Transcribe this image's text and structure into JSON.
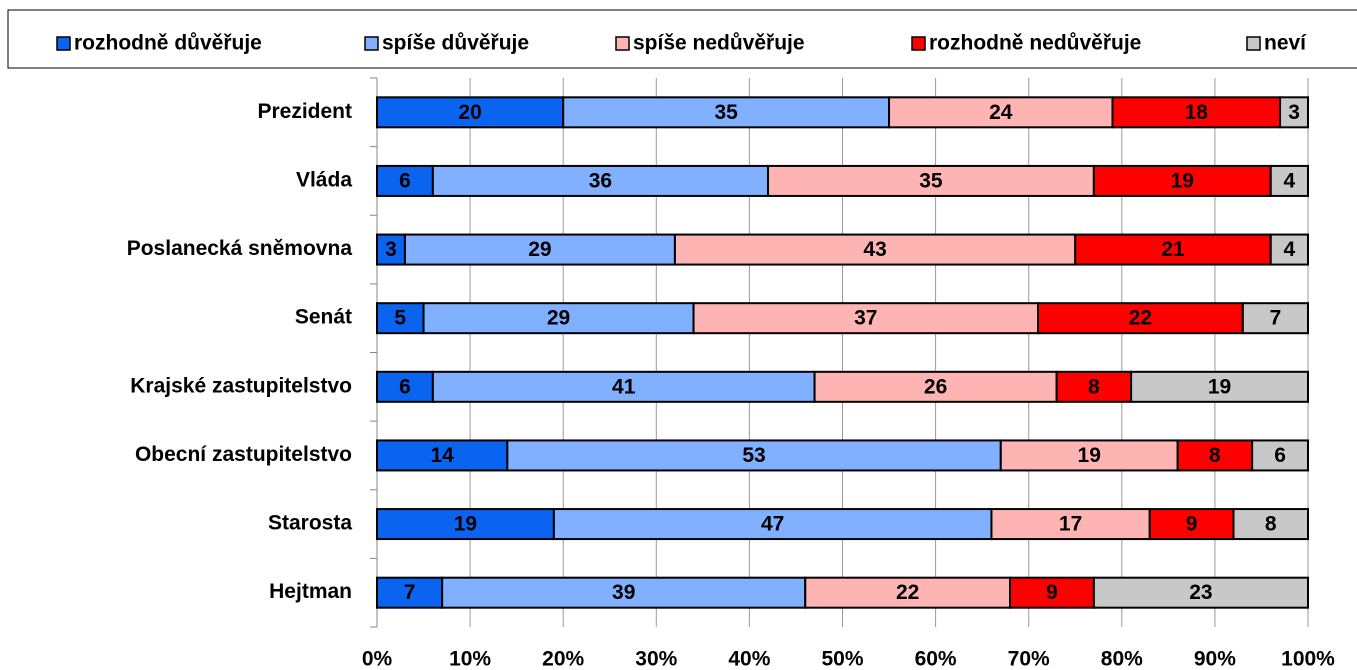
{
  "chart_data": {
    "type": "stacked-bar-horizontal",
    "categories": [
      "Prezident",
      "Vláda",
      "Poslanecká sněmovna",
      "Senát",
      "Krajské zastupitelstvo",
      "Obecní zastupitelstvo",
      "Starosta",
      "Hejtman"
    ],
    "series": [
      {
        "name": "rozhodně důvěřuje",
        "color": "#0a64f0",
        "values": [
          20,
          6,
          3,
          5,
          6,
          14,
          19,
          7
        ]
      },
      {
        "name": "spíše důvěřuje",
        "color": "#80b0ff",
        "values": [
          35,
          36,
          29,
          29,
          41,
          53,
          47,
          39
        ]
      },
      {
        "name": "spíše nedůvěřuje",
        "color": "#ffb4b4",
        "values": [
          24,
          35,
          43,
          37,
          26,
          19,
          17,
          22
        ]
      },
      {
        "name": "rozhodně nedůvěřuje",
        "color": "#ff0000",
        "values": [
          18,
          19,
          21,
          22,
          8,
          8,
          9,
          9
        ]
      },
      {
        "name": "neví",
        "color": "#c8c8c8",
        "values": [
          3,
          4,
          4,
          7,
          19,
          6,
          8,
          23
        ]
      }
    ],
    "xlim": [
      0,
      100
    ],
    "xticks": [
      {
        "value": 0,
        "label": "0%"
      },
      {
        "value": 10,
        "label": "10%"
      },
      {
        "value": 20,
        "label": "20%"
      },
      {
        "value": 30,
        "label": "30%"
      },
      {
        "value": 40,
        "label": "40%"
      },
      {
        "value": 50,
        "label": "50%"
      },
      {
        "value": 60,
        "label": "60%"
      },
      {
        "value": 70,
        "label": "70%"
      },
      {
        "value": 80,
        "label": "80%"
      },
      {
        "value": 90,
        "label": "90%"
      },
      {
        "value": 100,
        "label": "100%"
      }
    ],
    "grid": true,
    "legend": "top"
  }
}
